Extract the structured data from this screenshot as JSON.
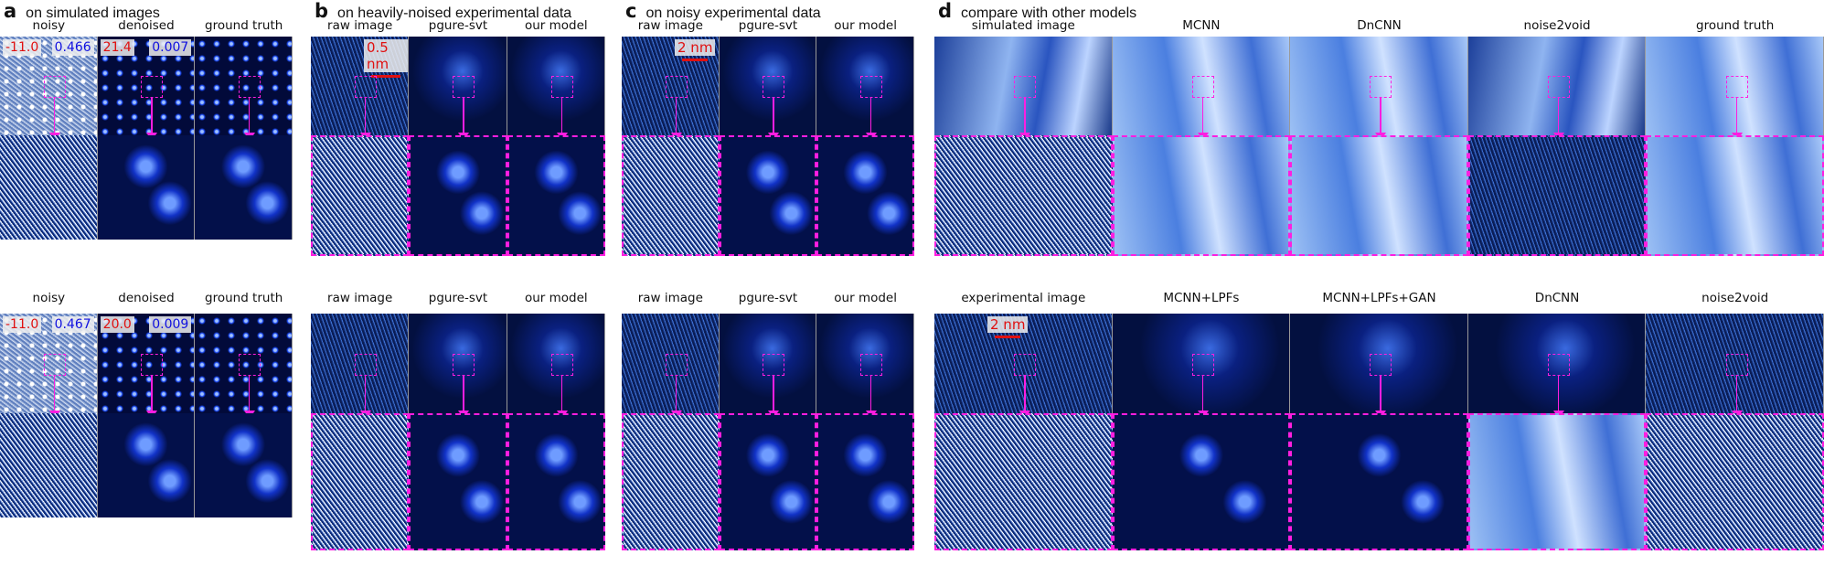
{
  "colors": {
    "highlight": "#ff1ee0",
    "scale_bar": "#e01010",
    "overlay_red": "#e01010",
    "overlay_blue": "#1010e0"
  },
  "panels": [
    {
      "letter": "a",
      "title": "on simulated images",
      "rows": [
        {
          "labels": [
            "noisy",
            "denoised",
            "ground truth"
          ],
          "overlays": {
            "noisy_left": "-11.0",
            "noisy_right": "0.466",
            "denoised_left": "21.4",
            "denoised_right": "0.007"
          }
        },
        {
          "labels": [
            "noisy",
            "denoised",
            "ground truth"
          ],
          "overlays": {
            "noisy_left": "-11.0",
            "noisy_right": "0.467",
            "denoised_left": "20.0",
            "denoised_right": "0.009"
          }
        }
      ]
    },
    {
      "letter": "b",
      "title": "on heavily-noised experimental data",
      "scale_bar": "0.5 nm",
      "rows": [
        {
          "labels": [
            "raw image",
            "pgure-svt",
            "our model"
          ]
        },
        {
          "labels": [
            "raw image",
            "pgure-svt",
            "our model"
          ]
        }
      ]
    },
    {
      "letter": "c",
      "title": "on noisy experimental data",
      "scale_bar": "2 nm",
      "rows": [
        {
          "labels": [
            "raw image",
            "pgure-svt",
            "our model"
          ]
        },
        {
          "labels": [
            "raw image",
            "pgure-svt",
            "our model"
          ]
        }
      ]
    },
    {
      "letter": "d",
      "title": "compare with other models",
      "scale_bar": "2 nm",
      "rows": [
        {
          "labels": [
            "simulated image",
            "MCNN",
            "DnCNN",
            "noise2void",
            "ground truth"
          ]
        },
        {
          "labels": [
            "experimental image",
            "MCNN+LPFs",
            "MCNN+LPFs+GAN",
            "DnCNN",
            "noise2void"
          ]
        }
      ]
    }
  ]
}
